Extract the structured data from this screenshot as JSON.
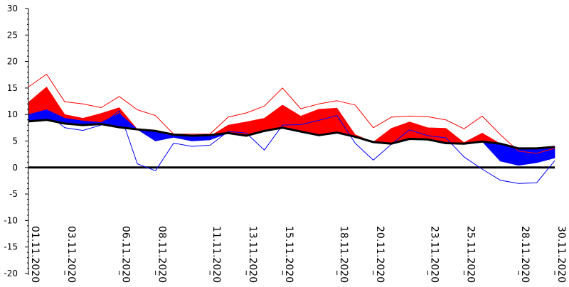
{
  "chart_data": {
    "type": "line",
    "title": "",
    "xlabel": "",
    "ylabel": "",
    "ylim": [
      -20,
      30
    ],
    "yticks": [
      30,
      25,
      20,
      15,
      10,
      5,
      0,
      -5,
      -10,
      -15,
      -20
    ],
    "grid": false,
    "x": [
      "01.11.2020",
      "02.11.2020",
      "03.11.2020",
      "04.11.2020",
      "05.11.2020",
      "06.11.2020",
      "07.11.2020",
      "08.11.2020",
      "09.11.2020",
      "10.11.2020",
      "11.11.2020",
      "12.11.2020",
      "13.11.2020",
      "14.11.2020",
      "15.11.2020",
      "16.11.2020",
      "17.11.2020",
      "18.11.2020",
      "19.11.2020",
      "20.11.2020",
      "21.11.2020",
      "22.11.2020",
      "23.11.2020",
      "24.11.2020",
      "25.11.2020",
      "26.11.2020",
      "27.11.2020",
      "28.11.2020",
      "29.11.2020",
      "30.11.2020"
    ],
    "x_tick_labels": [
      "01.11.2020",
      "03.11.2020",
      "06.11.2020",
      "08.11.2020",
      "11.11.2020",
      "13.11.2020",
      "15.11.2020",
      "18.11.2020",
      "20.11.2020",
      "23.11.2020",
      "25.11.2020",
      "28.11.2020",
      "30.11.2020"
    ],
    "x_tick_positions": [
      0,
      2,
      5,
      7,
      10,
      12,
      14,
      17,
      19,
      22,
      24,
      27,
      29
    ],
    "series": [
      {
        "color": "#000000",
        "values": [
          8.7,
          9.0,
          8.3,
          8.0,
          8.2,
          7.6,
          7.2,
          6.9,
          6.2,
          6.0,
          6.1,
          6.5,
          6.0,
          6.9,
          7.5,
          6.8,
          6.1,
          6.6,
          5.8,
          4.8,
          4.5,
          5.4,
          5.3,
          4.6,
          4.5,
          4.9,
          4.5,
          3.6,
          3.6,
          3.9
        ]
      },
      {
        "color": "#ff0000",
        "values": [
          12.3,
          15.2,
          10.0,
          9.3,
          10.2,
          11.3,
          7.2,
          5.7,
          5.8,
          5.4,
          5.9,
          8.0,
          8.6,
          9.3,
          11.8,
          9.7,
          11.0,
          11.2,
          6.2,
          4.8,
          7.4,
          8.6,
          7.5,
          7.4,
          4.7,
          6.5,
          4.5,
          3.6,
          3.6,
          3.9
        ]
      },
      {
        "color": "#ff0000",
        "values": [
          15.2,
          17.6,
          12.4,
          12.0,
          11.3,
          13.4,
          10.9,
          9.8,
          6.3,
          6.3,
          6.3,
          9.5,
          10.3,
          11.6,
          15.0,
          11.1,
          12.0,
          12.6,
          11.8,
          7.5,
          9.5,
          9.7,
          9.6,
          9.0,
          7.3,
          9.7,
          6.2,
          3.1,
          2.7,
          3.6
        ]
      },
      {
        "color": "#0000ff",
        "values": [
          10.0,
          10.9,
          9.3,
          8.8,
          8.5,
          10.2,
          7.2,
          5.0,
          5.7,
          5.0,
          5.2,
          6.5,
          6.0,
          6.9,
          7.5,
          6.8,
          6.1,
          6.6,
          5.8,
          4.8,
          4.5,
          5.4,
          5.3,
          4.6,
          4.5,
          4.9,
          1.2,
          0.4,
          0.9,
          1.8
        ]
      },
      {
        "color": "#0000ff",
        "values": [
          9.7,
          10.3,
          7.5,
          7.0,
          8.0,
          10.7,
          0.7,
          -0.6,
          4.6,
          4.0,
          4.2,
          6.8,
          6.5,
          3.3,
          8.0,
          8.1,
          8.9,
          9.8,
          4.6,
          1.4,
          4.4,
          7.1,
          6.0,
          5.6,
          2.0,
          -0.3,
          -2.4,
          -3.0,
          -2.9,
          1.3
        ]
      }
    ],
    "colors": {
      "warm_fill": "#ff0000",
      "cold_fill": "#0000ff",
      "baseline": "#000000",
      "zero_line": "#000000"
    }
  }
}
